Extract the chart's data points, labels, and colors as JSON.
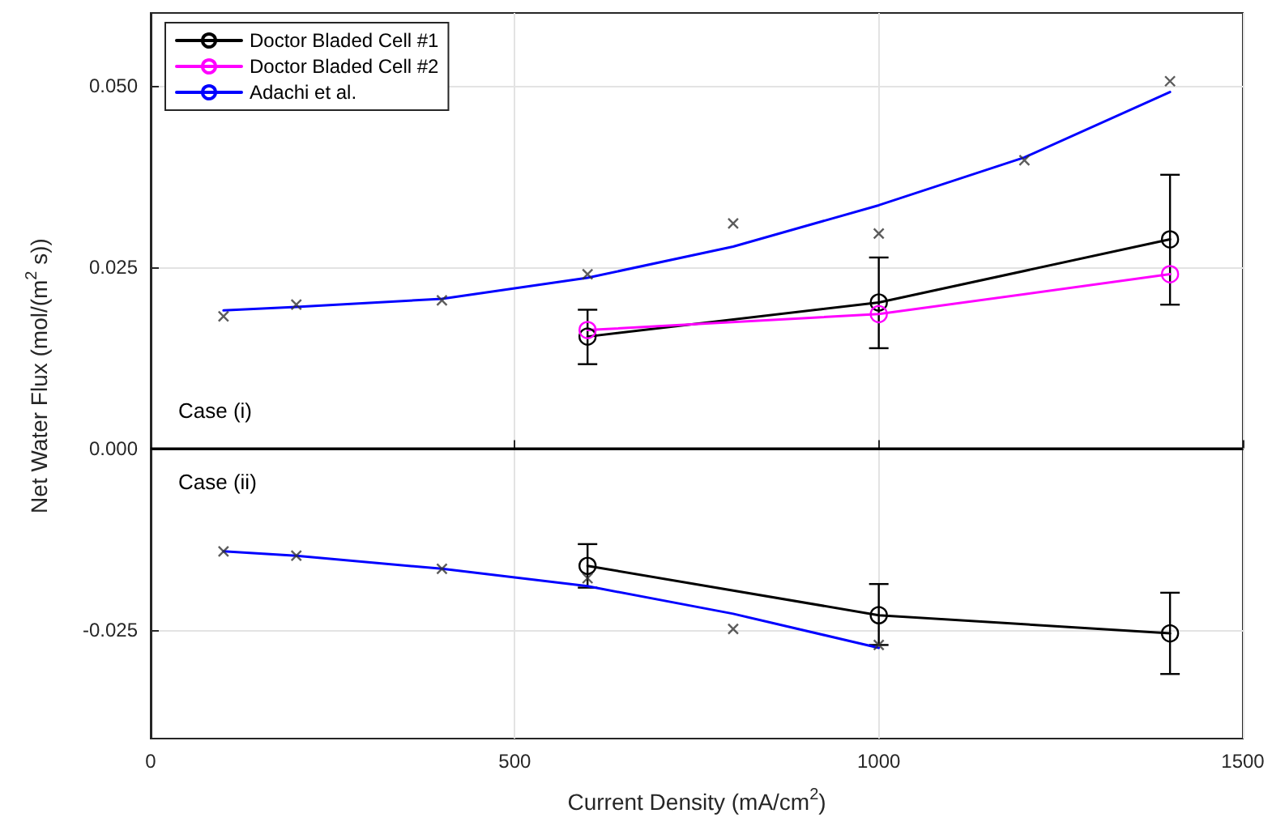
{
  "chart_data": {
    "type": "line",
    "xlabel": "Current Density (mA/cm$^{2}$)",
    "ylabel": "Net Water Flux (mol/(m$^{2}$ s))",
    "xlim": [
      0,
      1500
    ],
    "xticks": [
      0,
      500,
      1000,
      1500
    ],
    "ylim": [
      -0.04,
      0.06
    ],
    "yticks": [
      {
        "value": -0.025,
        "label": "-0.025"
      },
      {
        "value": 0,
        "label": "0.000"
      },
      {
        "value": 0.025,
        "label": "0.025"
      },
      {
        "value": 0.05,
        "label": "0.050"
      }
    ],
    "grid": true,
    "legend": "top left",
    "ref_lines": [
      {
        "axis": "y",
        "value": 0,
        "color": "#000000"
      }
    ],
    "annotations": [
      "Case (i)",
      "Case (ii)"
    ],
    "series": [
      {
        "name": "Doctor Bladed Cell #1",
        "color": "#000000",
        "marker": "circle",
        "x": [
          600,
          1000,
          1400
        ],
        "values": [
          0.0154,
          0.0201,
          0.0288
        ],
        "errors": [
          [
            0.0116,
            0.0191
          ],
          [
            0.0138,
            0.0263
          ],
          [
            0.0198,
            0.0377
          ]
        ]
      },
      {
        "name": "Doctor Bladed Cell #2",
        "color": "#ff00ff",
        "marker": "circle",
        "x": [
          600,
          1000,
          1400
        ],
        "values": [
          0.0163,
          0.0185,
          0.024
        ]
      },
      {
        "name": "Adachi et al.",
        "color": "#0000ff",
        "marker": "none",
        "x": [
          100,
          200,
          400,
          600,
          800,
          1000,
          1200,
          1400
        ],
        "values": [
          0.019,
          0.0195,
          0.0206,
          0.0235,
          0.0278,
          0.0335,
          0.0401,
          0.0491
        ]
      },
      {
        "type": "scatter",
        "color": "#333333",
        "marker": "cross",
        "x": [
          100,
          200,
          400,
          600,
          800,
          1000,
          1200,
          1400
        ],
        "values": [
          0.0182,
          0.0198,
          0.0204,
          0.024,
          0.031,
          0.0296,
          0.0397,
          0.0506
        ]
      },
      {
        "color": "#000000",
        "marker": "circle",
        "x": [
          600,
          1000,
          1400
        ],
        "values": [
          -0.0162,
          -0.023,
          -0.0255
        ],
        "errors": [
          [
            -0.0192,
            -0.0132
          ],
          [
            -0.0271,
            -0.0187
          ],
          [
            -0.0311,
            -0.0199
          ]
        ]
      },
      {
        "color": "#0000ff",
        "marker": "none",
        "x": [
          100,
          200,
          400,
          600,
          800,
          1000
        ],
        "values": [
          -0.0142,
          -0.0148,
          -0.0166,
          -0.019,
          -0.0228,
          -0.0275
        ]
      },
      {
        "type": "scatter",
        "color": "#333333",
        "marker": "cross",
        "x": [
          100,
          200,
          400,
          600,
          800,
          1000
        ],
        "values": [
          -0.0142,
          -0.0148,
          -0.0166,
          -0.0179,
          -0.0249,
          -0.0271
        ]
      }
    ]
  }
}
